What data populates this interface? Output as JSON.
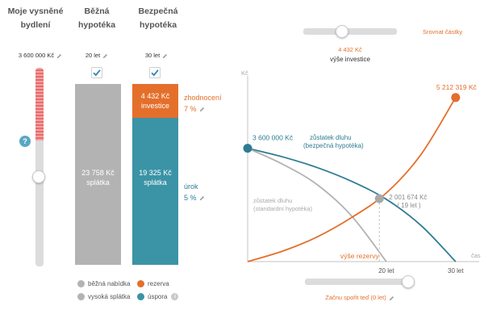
{
  "columns": [
    {
      "title_line1": "Moje vysněné",
      "title_line2": "bydlení",
      "value": "3 600 000 Kč"
    },
    {
      "title_line1": "Běžná",
      "title_line2": "hypotéka",
      "value": "20 let"
    },
    {
      "title_line1": "Bezpečná",
      "title_line2": "hypotéka",
      "value": "30 let"
    }
  ],
  "help_icon_label": "?",
  "bars": {
    "standard": {
      "amount": "23 758 Kč",
      "label": "splátka",
      "color": "#b3b3b3"
    },
    "investment": {
      "amount": "4 432 Kč",
      "label": "investice",
      "color": "#e46f2b"
    },
    "safe": {
      "amount": "19 325 Kč",
      "label": "splátka",
      "color": "#3b93a6"
    }
  },
  "side_labels": {
    "appreciation_label": "zhodnocení",
    "appreciation_value": "7 %",
    "interest_label": "úrok",
    "interest_value": "5 %"
  },
  "legend": {
    "standard_offer": "běžná nabídka",
    "reserve": "rezerva",
    "high_payment": "vysoká splátka",
    "saving": "úspora",
    "info_icon": "i"
  },
  "top_slider": {
    "value": "4 432 Kč",
    "label": "výše investice",
    "level": 0.4
  },
  "align_link": "Srovnat částky",
  "chart_data": {
    "type": "line",
    "ylabel": "Kč",
    "xlabel": "čas",
    "x_ticks": [
      "20 let",
      "30 let"
    ],
    "xlim": [
      0,
      32
    ],
    "ylim": [
      0,
      5900000
    ],
    "series": [
      {
        "name": "zůstatek dluhu (bezpečná hypotéka)",
        "color": "#2e7c93",
        "points": [
          [
            0,
            3600000
          ],
          [
            5,
            3330000
          ],
          [
            10,
            2990000
          ],
          [
            15,
            2550000
          ],
          [
            20,
            1980000
          ],
          [
            25,
            1150000
          ],
          [
            30,
            0
          ]
        ]
      },
      {
        "name": "zůstatek dluhu (standardní hypotéka)",
        "color": "#b3b3b3",
        "points": [
          [
            0,
            3600000
          ],
          [
            5,
            3100000
          ],
          [
            10,
            2450000
          ],
          [
            15,
            1450000
          ],
          [
            20,
            0
          ]
        ]
      },
      {
        "name": "výše rezervy",
        "color": "#e46f2b",
        "points": [
          [
            0,
            0
          ],
          [
            5,
            330000
          ],
          [
            10,
            780000
          ],
          [
            15,
            1400000
          ],
          [
            20,
            2180000
          ],
          [
            25,
            3400000
          ],
          [
            30,
            5212319
          ]
        ]
      }
    ],
    "annotations": {
      "start_value": "3 600 000 Kč",
      "end_value": "5 212 319 Kč",
      "crossing_value": "2 001 674 Kč",
      "crossing_years": "( 19 let )",
      "crossing_point": [
        19,
        2001674
      ],
      "safe_label_line1": "zůstatek dluhu",
      "safe_label_line2": "(bezpečná hypotéka)",
      "standard_label_line1": "zůstatek dluhu",
      "standard_label_line2": "(standardní hypotéka)",
      "reserve_label": "výše rezervy"
    }
  },
  "bottom_slider": {
    "label": "Začnu spořit teď (0 let)",
    "level": 0.0
  },
  "colors": {
    "accent": "#e46f2b",
    "teal": "#2e7c93",
    "grey": "#b3b3b3",
    "check": "#2e86b5"
  }
}
